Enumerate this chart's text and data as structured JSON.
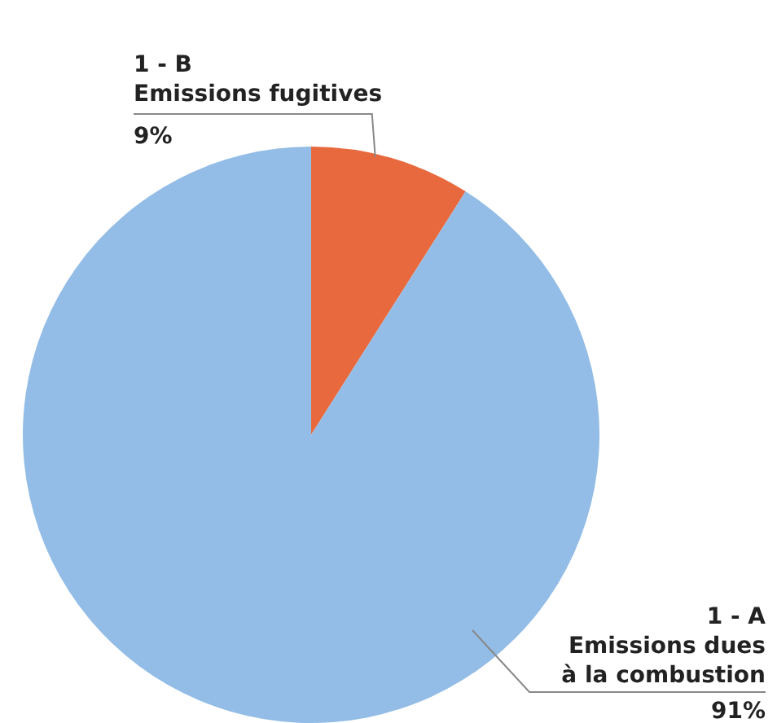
{
  "chart_data": {
    "type": "pie",
    "categories": [
      "1 - B\nEmissions fugitives",
      "1 - A\nEmissions dues\nà la combustion"
    ],
    "values": [
      9,
      91
    ],
    "colors": [
      "#e8693d",
      "#93bde6"
    ],
    "value_labels": [
      "9%",
      "91%"
    ]
  }
}
